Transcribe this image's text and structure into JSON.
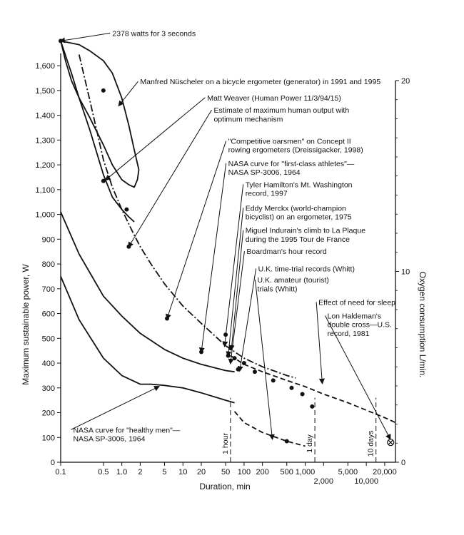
{
  "chart_data": {
    "type": "line",
    "xlabel": "Duration, min",
    "ylabel_left": "Maximum sustainable power, W",
    "ylabel_right": "Oxygen consumption L/min.",
    "x_scale": "log",
    "xlim": [
      0.1,
      30000
    ],
    "ylim_left": [
      0,
      1750
    ],
    "ylim_right": [
      0,
      20
    ],
    "x_ticks": [
      {
        "v": 0.1,
        "label": "0.1"
      },
      {
        "v": 0.5,
        "label": "0.5"
      },
      {
        "v": 1,
        "label": "1.0"
      },
      {
        "v": 2,
        "label": "2"
      },
      {
        "v": 5,
        "label": "5"
      },
      {
        "v": 10,
        "label": "10"
      },
      {
        "v": 20,
        "label": "20"
      },
      {
        "v": 50,
        "label": "50"
      },
      {
        "v": 100,
        "label": "100"
      },
      {
        "v": 200,
        "label": "200"
      },
      {
        "v": 500,
        "label": "500"
      },
      {
        "v": 1000,
        "label": "1,000"
      },
      {
        "v": 2000,
        "label": "2,000",
        "low": true
      },
      {
        "v": 5000,
        "label": "5,000"
      },
      {
        "v": 10000,
        "label": "10,000",
        "low": true
      },
      {
        "v": 20000,
        "label": "20,000"
      }
    ],
    "y_ticks_left": [
      {
        "v": 0,
        "label": "0"
      },
      {
        "v": 100,
        "label": "100"
      },
      {
        "v": 200,
        "label": "200"
      },
      {
        "v": 300,
        "label": "300"
      },
      {
        "v": 400,
        "label": "400"
      },
      {
        "v": 500,
        "label": "500"
      },
      {
        "v": 600,
        "label": "600"
      },
      {
        "v": 700,
        "label": "700"
      },
      {
        "v": 800,
        "label": "800"
      },
      {
        "v": 900,
        "label": "900"
      },
      {
        "v": 1000,
        "label": "1,000"
      },
      {
        "v": 1100,
        "label": "1,100"
      },
      {
        "v": 1200,
        "label": "1,200"
      },
      {
        "v": 1300,
        "label": "1,300"
      },
      {
        "v": 1400,
        "label": "1,400"
      },
      {
        "v": 1500,
        "label": "1,500"
      },
      {
        "v": 1600,
        "label": "1,600"
      }
    ],
    "y_ticks_right": [
      {
        "v": 0,
        "label": "0"
      },
      {
        "v": 10,
        "label": "10"
      },
      {
        "v": 20,
        "label": "20"
      }
    ],
    "vertical_markers": [
      {
        "x": 60,
        "label": "1 hour"
      },
      {
        "x": 1440,
        "label": "1 day"
      },
      {
        "x": 14400,
        "label": "10 days"
      }
    ],
    "series": [
      {
        "name": "Manfred Nüscheler on a bicycle ergometer (generator) in 1991 and 1995",
        "style": "solid",
        "x": [
          0.1,
          0.12,
          0.15,
          0.2,
          0.3,
          0.5,
          0.7,
          1,
          1.3,
          1.6,
          1.8,
          1.9
        ],
        "y": [
          1700,
          1620,
          1540,
          1470,
          1390,
          1280,
          1200,
          1140,
          1120,
          1110,
          1140,
          1180
        ]
      },
      {
        "name": "Manfred Nüscheler upper envelope",
        "style": "solid",
        "x": [
          0.1,
          0.2,
          0.3,
          0.5,
          0.7,
          1,
          1.3,
          1.6,
          1.9
        ],
        "y": [
          1700,
          1685,
          1660,
          1620,
          1570,
          1470,
          1360,
          1260,
          1180
        ]
      },
      {
        "name": "Estimate of maximum human output with optimum mechanism",
        "style": "solid",
        "x": [
          0.1,
          0.15,
          0.2,
          0.3,
          0.5,
          0.7,
          1,
          1.3,
          1.6
        ],
        "y": [
          1700,
          1570,
          1470,
          1340,
          1160,
          1070,
          1020,
          990,
          970
        ]
      },
      {
        "name": "NASA curve for \"first-class athletes\"—NASA SP-3006, 1964",
        "style": "dashdot",
        "x": [
          0.2,
          0.3,
          0.5,
          0.7,
          1,
          1.5,
          2,
          3,
          5,
          10,
          20,
          50,
          100,
          200,
          300,
          500,
          700
        ],
        "y": [
          1645,
          1460,
          1220,
          1110,
          1020,
          930,
          870,
          800,
          720,
          630,
          560,
          470,
          420,
          385,
          370,
          350,
          340
        ]
      },
      {
        "name": "Upper solid curve",
        "style": "solid",
        "x": [
          0.1,
          0.2,
          0.5,
          1,
          2,
          5,
          10,
          20,
          50,
          70
        ],
        "y": [
          1010,
          840,
          670,
          590,
          520,
          455,
          420,
          395,
          370,
          365
        ]
      },
      {
        "name": "NASA curve for \"healthy men\"—NASA SP-3006, 1964",
        "style": "solid",
        "x": [
          0.1,
          0.2,
          0.5,
          1,
          2,
          3,
          5,
          10,
          20,
          50,
          70
        ],
        "y": [
          750,
          575,
          420,
          350,
          315,
          315,
          310,
          300,
          280,
          250,
          240
        ]
      },
      {
        "name": "Lower dashed curve",
        "style": "dashed",
        "x": [
          70,
          100,
          200,
          500,
          1000
        ],
        "y": [
          205,
          160,
          120,
          85,
          65
        ]
      },
      {
        "name": "Record dashed curve",
        "style": "dashed",
        "x": [
          60,
          100,
          200,
          500,
          1000,
          2000,
          5000,
          10000,
          20000,
          30000
        ],
        "y": [
          430,
          395,
          365,
          330,
          305,
          275,
          240,
          210,
          180,
          160
        ]
      }
    ],
    "data_points": [
      {
        "x": 0.1,
        "y": 1700
      },
      {
        "x": 0.5,
        "y": 1500
      },
      {
        "x": 0.5,
        "y": 1135
      },
      {
        "x": 1.2,
        "y": 1020
      },
      {
        "x": 1.3,
        "y": 870
      },
      {
        "x": 5.5,
        "y": 580
      },
      {
        "x": 20,
        "y": 445
      },
      {
        "x": 50,
        "y": 515
      },
      {
        "x": 55,
        "y": 430
      },
      {
        "x": 60,
        "y": 460
      },
      {
        "x": 70,
        "y": 420
      },
      {
        "x": 80,
        "y": 375
      },
      {
        "x": 100,
        "y": 400
      },
      {
        "x": 150,
        "y": 365
      },
      {
        "x": 300,
        "y": 330
      },
      {
        "x": 600,
        "y": 300
      },
      {
        "x": 900,
        "y": 275
      },
      {
        "x": 1300,
        "y": 225
      },
      {
        "x": 500,
        "y": 85
      }
    ],
    "marker_x": {
      "x": 25000,
      "y": 80
    },
    "annotations": [
      {
        "text": "2378 watts for 3 seconds",
        "tx": 0.7,
        "ty": 1720,
        "ax": 0.1,
        "ay": 1700
      },
      {
        "text": "Manfred Nüscheler on a bicycle ergometer (generator) in 1991 and 1995",
        "tx": 2,
        "ty": 1525,
        "ax": 0.9,
        "ay": 1440
      },
      {
        "text": "Matt Weaver (Human Power 11/3/94/15)",
        "tx": 25,
        "ty": 1460,
        "ax": 0.55,
        "ay": 1140
      },
      {
        "text": "Estimate of maximum  human output with",
        "tx": 32,
        "ty": 1410,
        "ax": 1.3,
        "ay": 870
      },
      {
        "text": "optimum mechanism",
        "tx": 32,
        "ty": 1375,
        "ax": null,
        "ay": null
      },
      {
        "text": "\"Competitive oarsmen\" on Concept II",
        "tx": 55,
        "ty": 1285,
        "ax": 5.5,
        "ay": 580
      },
      {
        "text": "rowing ergometers (Dreissigacker, 1998)",
        "tx": 55,
        "ty": 1250,
        "ax": null,
        "ay": null
      },
      {
        "text": "NASA curve for \"first-class athletes\"—",
        "tx": 55,
        "ty": 1195,
        "ax": 20,
        "ay": 445
      },
      {
        "text": "NASA SP-3006, 1964",
        "tx": 55,
        "ty": 1160,
        "ax": null,
        "ay": null
      },
      {
        "text": "Tyler Hamilton's Mt. Washington",
        "tx": 105,
        "ty": 1110,
        "ax": 48,
        "ay": 470
      },
      {
        "text": "record, 1997",
        "tx": 105,
        "ty": 1075,
        "ax": null,
        "ay": null
      },
      {
        "text": "Eddy Merckx (world-champion",
        "tx": 105,
        "ty": 1015,
        "ax": 55,
        "ay": 430
      },
      {
        "text": "bicyclist) on an ergometer, 1975",
        "tx": 105,
        "ty": 980,
        "ax": null,
        "ay": null
      },
      {
        "text": "Miguel Indurain's climb to La Plaque",
        "tx": 105,
        "ty": 925,
        "ax": 62,
        "ay": 455
      },
      {
        "text": "during the 1995 Tour de France",
        "tx": 105,
        "ty": 890,
        "ax": null,
        "ay": null
      },
      {
        "text": "Boardman's hour record",
        "tx": 110,
        "ty": 840,
        "ax": 60,
        "ay": 400
      },
      {
        "text": "U.K. time-trial records (Whitt)",
        "tx": 170,
        "ty": 770,
        "ax": 85,
        "ay": 370
      },
      {
        "text": "U.K. amateur (tourist)",
        "tx": 165,
        "ty": 725,
        "ax": 290,
        "ay": 95
      },
      {
        "text": "trials (Whitt)",
        "tx": 165,
        "ty": 690,
        "ax": null,
        "ay": null
      },
      {
        "text": "Effect of need for sleep",
        "tx": 1650,
        "ty": 635,
        "ax": 1900,
        "ay": 320
      },
      {
        "text": "Lon Haldeman's",
        "tx": 2300,
        "ty": 580,
        "ax": 24500,
        "ay": 95
      },
      {
        "text": "double cross—U.S.",
        "tx": 2300,
        "ty": 545,
        "ax": null,
        "ay": null
      },
      {
        "text": "record, 1981",
        "tx": 2300,
        "ty": 510,
        "ax": null,
        "ay": null
      },
      {
        "text": "NASA curve for \"healthy men\"—",
        "tx": 0.16,
        "ty": 120,
        "ax": 4,
        "ay": 305
      },
      {
        "text": "NASA SP-3006, 1964",
        "tx": 0.16,
        "ty": 85,
        "ax": null,
        "ay": null
      }
    ]
  }
}
